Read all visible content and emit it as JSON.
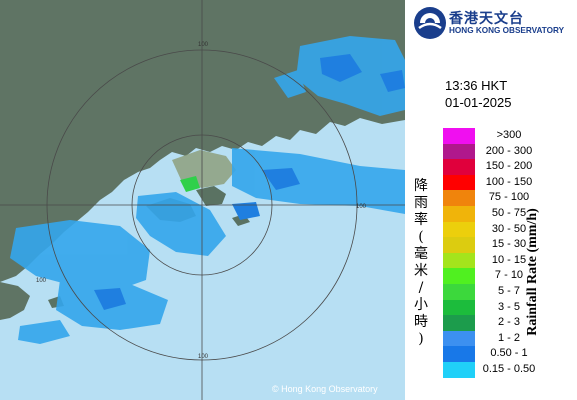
{
  "header": {
    "org_name_zh": "香港天文台",
    "org_name_en": "HONG KONG OBSERVATORY",
    "time": "13:36 HKT",
    "date": "01-01-2025"
  },
  "legend": {
    "title_en": "Rainfall Rate (mm/h)",
    "title_zh": [
      "降",
      "雨",
      "率",
      "(",
      "毫",
      "米",
      "/",
      "小",
      "時",
      ")"
    ],
    "items": [
      {
        "label": ">300",
        "color": "#f00ff0"
      },
      {
        "label": "200 - 300",
        "color": "#b0188c"
      },
      {
        "label": "150 - 200",
        "color": "#e0003c"
      },
      {
        "label": "100 - 150",
        "color": "#ff0000"
      },
      {
        "label": "75 - 100",
        "color": "#f0840c"
      },
      {
        "label": "50 - 75",
        "color": "#f0b40a"
      },
      {
        "label": "30 - 50",
        "color": "#eccf0c"
      },
      {
        "label": "15 - 30",
        "color": "#dccc10"
      },
      {
        "label": "10 - 15",
        "color": "#a4e41c"
      },
      {
        "label": "7 - 10",
        "color": "#50f020"
      },
      {
        "label": "5 - 7",
        "color": "#3cd83c"
      },
      {
        "label": "3 - 5",
        "color": "#1cbc3c"
      },
      {
        "label": "2 - 3",
        "color": "#1c9c4c"
      },
      {
        "label": "1 - 2",
        "color": "#3c90f0"
      },
      {
        "label": "0.50 - 1",
        "color": "#1878e8"
      },
      {
        "label": "0.15 - 0.50",
        "color": "#20d0f8"
      }
    ]
  },
  "map": {
    "range_labels": [
      "100",
      "100",
      "100",
      "100"
    ],
    "copyright": "© Hong Kong Observatory",
    "colors": {
      "land": "#5f7464",
      "sea": "#b7dff3",
      "rain": "#34a6ec",
      "grid": "#4a4a4a"
    }
  }
}
